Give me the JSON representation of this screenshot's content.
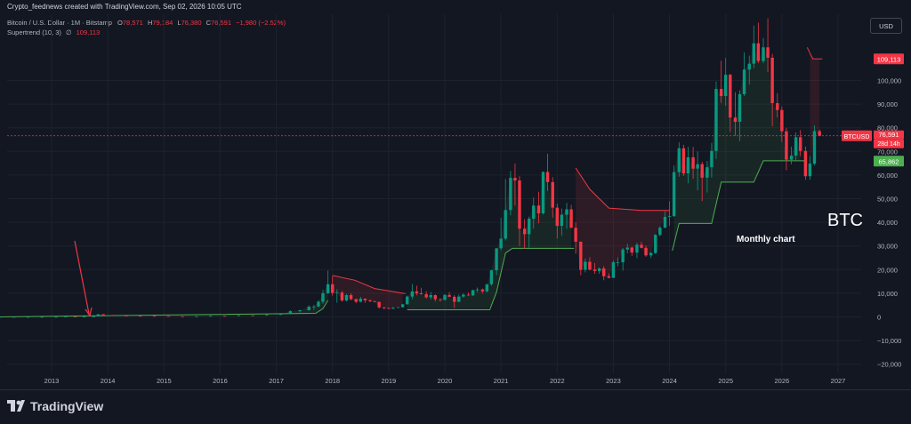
{
  "header": {
    "created_by": "Crypto_feednews created with TradingView.com, Sep 02, 2026 10:05 UTC"
  },
  "legend": {
    "symbol": "Bitcoin / U.S. Dollar · 1M · Bitstamp",
    "o_label": "O",
    "o_value": "78,571",
    "h_label": "H",
    "h_value": "79,184",
    "l_label": "L",
    "l_value": "76,380",
    "c_label": "C",
    "c_value": "76,591",
    "change": "−1,980 (−2.52%)",
    "indicator_name": "Supertrend (10, 3)",
    "indicator_sep": "∅",
    "indicator_value": "109,113"
  },
  "currency_button": "USD",
  "annotations": {
    "big_label": "BTC",
    "sub_label": "Monthly chart"
  },
  "footer": {
    "brand": "TradingView"
  },
  "colors": {
    "background": "#131722",
    "bull": "#089981",
    "bear": "#f23645",
    "supertrend_up": "#4caf50",
    "supertrend_down": "#f23645"
  },
  "price_tags": {
    "supertrend_tag": "109,113",
    "symbol_tag": "BTCUSD",
    "last_price_tag": "76,591",
    "countdown_tag": "28d 14h",
    "low_tag": "65,862"
  },
  "chart_data": {
    "type": "candlestick",
    "title": "",
    "y_axis_ticks": [
      -20000,
      -10000,
      0,
      10000,
      20000,
      30000,
      40000,
      50000,
      60000,
      70000,
      80000,
      90000,
      100000
    ],
    "y_tick_labels": [
      "−20,000",
      "−10,000",
      "0",
      "10,000",
      "20,000",
      "30,000",
      "40,000",
      "50,000",
      "60,000",
      "70,000",
      "80,000",
      "90,000",
      "100,000"
    ],
    "x_axis_labels": [
      "2013",
      "2014",
      "2015",
      "2016",
      "2017",
      "2018",
      "2019",
      "2020",
      "2021",
      "2022",
      "2023",
      "2024",
      "2025",
      "2026",
      "2027"
    ],
    "ylim": [
      -24000,
      118000
    ],
    "xlim": [
      2012.2,
      2027.4
    ],
    "candles": [
      {
        "t": 2012.08,
        "o": 5,
        "h": 7,
        "l": 4,
        "c": 6
      },
      {
        "t": 2012.33,
        "o": 6,
        "h": 7,
        "l": 5,
        "c": 6
      },
      {
        "t": 2012.58,
        "o": 6,
        "h": 14,
        "l": 6,
        "c": 11
      },
      {
        "t": 2012.83,
        "o": 11,
        "h": 14,
        "l": 10,
        "c": 13
      },
      {
        "t": 2013.08,
        "o": 13,
        "h": 35,
        "l": 13,
        "c": 33
      },
      {
        "t": 2013.25,
        "o": 33,
        "h": 266,
        "l": 33,
        "c": 140
      },
      {
        "t": 2013.42,
        "o": 140,
        "h": 140,
        "l": 65,
        "c": 96
      },
      {
        "t": 2013.58,
        "o": 96,
        "h": 130,
        "l": 70,
        "c": 125
      },
      {
        "t": 2013.75,
        "o": 125,
        "h": 300,
        "l": 110,
        "c": 200
      },
      {
        "t": 2013.83,
        "o": 200,
        "h": 1163,
        "l": 190,
        "c": 1100
      },
      {
        "t": 2013.92,
        "o": 1100,
        "h": 1160,
        "l": 400,
        "c": 730
      },
      {
        "t": 2014.08,
        "o": 730,
        "h": 950,
        "l": 450,
        "c": 560
      },
      {
        "t": 2014.33,
        "o": 560,
        "h": 680,
        "l": 340,
        "c": 450
      },
      {
        "t": 2014.58,
        "o": 450,
        "h": 650,
        "l": 350,
        "c": 400
      },
      {
        "t": 2014.83,
        "o": 400,
        "h": 420,
        "l": 280,
        "c": 320
      },
      {
        "t": 2015.08,
        "o": 320,
        "h": 320,
        "l": 170,
        "c": 250
      },
      {
        "t": 2015.33,
        "o": 250,
        "h": 260,
        "l": 200,
        "c": 230
      },
      {
        "t": 2015.58,
        "o": 230,
        "h": 300,
        "l": 200,
        "c": 240
      },
      {
        "t": 2015.83,
        "o": 240,
        "h": 500,
        "l": 230,
        "c": 430
      },
      {
        "t": 2016.08,
        "o": 430,
        "h": 460,
        "l": 360,
        "c": 420
      },
      {
        "t": 2016.33,
        "o": 420,
        "h": 780,
        "l": 410,
        "c": 670
      },
      {
        "t": 2016.58,
        "o": 670,
        "h": 680,
        "l": 520,
        "c": 610
      },
      {
        "t": 2016.83,
        "o": 610,
        "h": 980,
        "l": 600,
        "c": 960
      },
      {
        "t": 2017.08,
        "o": 960,
        "h": 1300,
        "l": 760,
        "c": 1200
      },
      {
        "t": 2017.25,
        "o": 1200,
        "h": 2800,
        "l": 1100,
        "c": 2400
      },
      {
        "t": 2017.42,
        "o": 2400,
        "h": 3000,
        "l": 1900,
        "c": 2800
      },
      {
        "t": 2017.58,
        "o": 2800,
        "h": 4900,
        "l": 2700,
        "c": 4300
      },
      {
        "t": 2017.67,
        "o": 4300,
        "h": 5000,
        "l": 3000,
        "c": 4400
      },
      {
        "t": 2017.75,
        "o": 4400,
        "h": 7000,
        "l": 4100,
        "c": 6400
      },
      {
        "t": 2017.83,
        "o": 6400,
        "h": 11400,
        "l": 5500,
        "c": 10000
      },
      {
        "t": 2017.92,
        "o": 10000,
        "h": 19600,
        "l": 9700,
        "c": 13800
      },
      {
        "t": 2018.0,
        "o": 13800,
        "h": 17200,
        "l": 9000,
        "c": 10100
      },
      {
        "t": 2018.08,
        "o": 10100,
        "h": 11700,
        "l": 6000,
        "c": 10300
      },
      {
        "t": 2018.17,
        "o": 10300,
        "h": 11000,
        "l": 6500,
        "c": 6900
      },
      {
        "t": 2018.25,
        "o": 6900,
        "h": 9700,
        "l": 6500,
        "c": 9200
      },
      {
        "t": 2018.33,
        "o": 9200,
        "h": 10000,
        "l": 7000,
        "c": 7500
      },
      {
        "t": 2018.42,
        "o": 7500,
        "h": 7800,
        "l": 5800,
        "c": 6400
      },
      {
        "t": 2018.5,
        "o": 6400,
        "h": 8500,
        "l": 6100,
        "c": 7700
      },
      {
        "t": 2018.58,
        "o": 7700,
        "h": 7800,
        "l": 5900,
        "c": 7000
      },
      {
        "t": 2018.67,
        "o": 7000,
        "h": 7400,
        "l": 6200,
        "c": 6600
      },
      {
        "t": 2018.75,
        "o": 6600,
        "h": 6800,
        "l": 6200,
        "c": 6300
      },
      {
        "t": 2018.83,
        "o": 6300,
        "h": 6500,
        "l": 3500,
        "c": 4000
      },
      {
        "t": 2018.92,
        "o": 4000,
        "h": 4200,
        "l": 3200,
        "c": 3700
      },
      {
        "t": 2019.0,
        "o": 3700,
        "h": 4000,
        "l": 3400,
        "c": 3400
      },
      {
        "t": 2019.08,
        "o": 3400,
        "h": 4200,
        "l": 3400,
        "c": 3800
      },
      {
        "t": 2019.17,
        "o": 3800,
        "h": 4100,
        "l": 3700,
        "c": 4100
      },
      {
        "t": 2019.25,
        "o": 4100,
        "h": 5500,
        "l": 4000,
        "c": 5300
      },
      {
        "t": 2019.33,
        "o": 5300,
        "h": 9000,
        "l": 5300,
        "c": 8600
      },
      {
        "t": 2019.42,
        "o": 8600,
        "h": 13900,
        "l": 7500,
        "c": 10800
      },
      {
        "t": 2019.5,
        "o": 10800,
        "h": 13200,
        "l": 9100,
        "c": 10000
      },
      {
        "t": 2019.58,
        "o": 10000,
        "h": 12300,
        "l": 9400,
        "c": 9600
      },
      {
        "t": 2019.67,
        "o": 9600,
        "h": 10900,
        "l": 7700,
        "c": 8300
      },
      {
        "t": 2019.75,
        "o": 8300,
        "h": 10500,
        "l": 7300,
        "c": 9200
      },
      {
        "t": 2019.83,
        "o": 9200,
        "h": 9500,
        "l": 6500,
        "c": 7500
      },
      {
        "t": 2019.92,
        "o": 7500,
        "h": 7800,
        "l": 6400,
        "c": 7200
      },
      {
        "t": 2020.0,
        "o": 7200,
        "h": 9600,
        "l": 6900,
        "c": 9300
      },
      {
        "t": 2020.08,
        "o": 9300,
        "h": 10500,
        "l": 8400,
        "c": 8500
      },
      {
        "t": 2020.17,
        "o": 8500,
        "h": 9200,
        "l": 3800,
        "c": 6400
      },
      {
        "t": 2020.25,
        "o": 6400,
        "h": 9500,
        "l": 6200,
        "c": 8600
      },
      {
        "t": 2020.33,
        "o": 8600,
        "h": 10000,
        "l": 8100,
        "c": 9400
      },
      {
        "t": 2020.42,
        "o": 9400,
        "h": 10400,
        "l": 8900,
        "c": 9100
      },
      {
        "t": 2020.5,
        "o": 9100,
        "h": 11400,
        "l": 8900,
        "c": 11300
      },
      {
        "t": 2020.58,
        "o": 11300,
        "h": 12400,
        "l": 10500,
        "c": 11600
      },
      {
        "t": 2020.67,
        "o": 11600,
        "h": 12000,
        "l": 9900,
        "c": 10800
      },
      {
        "t": 2020.75,
        "o": 10800,
        "h": 13800,
        "l": 10400,
        "c": 13800
      },
      {
        "t": 2020.83,
        "o": 13800,
        "h": 19900,
        "l": 13200,
        "c": 19700
      },
      {
        "t": 2020.92,
        "o": 19700,
        "h": 29000,
        "l": 17600,
        "c": 29000
      },
      {
        "t": 2021.0,
        "o": 29000,
        "h": 41900,
        "l": 28100,
        "c": 33100
      },
      {
        "t": 2021.08,
        "o": 33100,
        "h": 58300,
        "l": 32300,
        "c": 45200
      },
      {
        "t": 2021.17,
        "o": 45200,
        "h": 61700,
        "l": 43000,
        "c": 58800
      },
      {
        "t": 2021.25,
        "o": 58800,
        "h": 64800,
        "l": 47100,
        "c": 57700
      },
      {
        "t": 2021.33,
        "o": 57700,
        "h": 59500,
        "l": 30000,
        "c": 37300
      },
      {
        "t": 2021.42,
        "o": 37300,
        "h": 41300,
        "l": 28800,
        "c": 35000
      },
      {
        "t": 2021.5,
        "o": 35000,
        "h": 42400,
        "l": 29300,
        "c": 41500
      },
      {
        "t": 2021.58,
        "o": 41500,
        "h": 50500,
        "l": 37300,
        "c": 47100
      },
      {
        "t": 2021.67,
        "o": 47100,
        "h": 52900,
        "l": 39600,
        "c": 43800
      },
      {
        "t": 2021.75,
        "o": 43800,
        "h": 61500,
        "l": 43300,
        "c": 61300
      },
      {
        "t": 2021.83,
        "o": 61300,
        "h": 69000,
        "l": 53300,
        "c": 57000
      },
      {
        "t": 2021.92,
        "o": 57000,
        "h": 59100,
        "l": 42000,
        "c": 46200
      },
      {
        "t": 2022.0,
        "o": 46200,
        "h": 47900,
        "l": 33100,
        "c": 38500
      },
      {
        "t": 2022.08,
        "o": 38500,
        "h": 45800,
        "l": 34300,
        "c": 43200
      },
      {
        "t": 2022.17,
        "o": 43200,
        "h": 48200,
        "l": 37200,
        "c": 45500
      },
      {
        "t": 2022.25,
        "o": 45500,
        "h": 47400,
        "l": 37600,
        "c": 37700
      },
      {
        "t": 2022.33,
        "o": 37700,
        "h": 40000,
        "l": 26700,
        "c": 31800
      },
      {
        "t": 2022.42,
        "o": 31800,
        "h": 31900,
        "l": 17600,
        "c": 19900
      },
      {
        "t": 2022.5,
        "o": 19900,
        "h": 24700,
        "l": 18800,
        "c": 23300
      },
      {
        "t": 2022.58,
        "o": 23300,
        "h": 25200,
        "l": 19600,
        "c": 20000
      },
      {
        "t": 2022.67,
        "o": 20000,
        "h": 22800,
        "l": 18200,
        "c": 19400
      },
      {
        "t": 2022.75,
        "o": 19400,
        "h": 20900,
        "l": 18200,
        "c": 20500
      },
      {
        "t": 2022.83,
        "o": 20500,
        "h": 21500,
        "l": 15500,
        "c": 17200
      },
      {
        "t": 2022.92,
        "o": 17200,
        "h": 18400,
        "l": 16300,
        "c": 16500
      },
      {
        "t": 2023.0,
        "o": 16500,
        "h": 23900,
        "l": 16500,
        "c": 23100
      },
      {
        "t": 2023.08,
        "o": 23100,
        "h": 25200,
        "l": 21400,
        "c": 23100
      },
      {
        "t": 2023.17,
        "o": 23100,
        "h": 29200,
        "l": 19600,
        "c": 28500
      },
      {
        "t": 2023.25,
        "o": 28500,
        "h": 31000,
        "l": 26900,
        "c": 29300
      },
      {
        "t": 2023.33,
        "o": 29300,
        "h": 29800,
        "l": 25800,
        "c": 27200
      },
      {
        "t": 2023.42,
        "o": 27200,
        "h": 31400,
        "l": 24800,
        "c": 30500
      },
      {
        "t": 2023.5,
        "o": 30500,
        "h": 31800,
        "l": 29000,
        "c": 29200
      },
      {
        "t": 2023.58,
        "o": 29200,
        "h": 30200,
        "l": 25400,
        "c": 26000
      },
      {
        "t": 2023.67,
        "o": 26000,
        "h": 27500,
        "l": 24900,
        "c": 27000
      },
      {
        "t": 2023.75,
        "o": 27000,
        "h": 35000,
        "l": 26600,
        "c": 34700
      },
      {
        "t": 2023.83,
        "o": 34700,
        "h": 38400,
        "l": 34100,
        "c": 37700
      },
      {
        "t": 2023.92,
        "o": 37700,
        "h": 44700,
        "l": 37600,
        "c": 42300
      },
      {
        "t": 2024.0,
        "o": 42300,
        "h": 48900,
        "l": 38500,
        "c": 42600
      },
      {
        "t": 2024.08,
        "o": 42600,
        "h": 64000,
        "l": 42300,
        "c": 61200
      },
      {
        "t": 2024.17,
        "o": 61200,
        "h": 73800,
        "l": 59300,
        "c": 71300
      },
      {
        "t": 2024.25,
        "o": 71300,
        "h": 72800,
        "l": 59600,
        "c": 60700
      },
      {
        "t": 2024.33,
        "o": 60700,
        "h": 71900,
        "l": 56500,
        "c": 67500
      },
      {
        "t": 2024.42,
        "o": 67500,
        "h": 71900,
        "l": 58400,
        "c": 62700
      },
      {
        "t": 2024.5,
        "o": 62700,
        "h": 70000,
        "l": 53500,
        "c": 64600
      },
      {
        "t": 2024.58,
        "o": 64600,
        "h": 65600,
        "l": 49000,
        "c": 58900
      },
      {
        "t": 2024.67,
        "o": 58900,
        "h": 66000,
        "l": 52600,
        "c": 63300
      },
      {
        "t": 2024.75,
        "o": 63300,
        "h": 73600,
        "l": 58900,
        "c": 70200
      },
      {
        "t": 2024.83,
        "o": 70200,
        "h": 99600,
        "l": 66800,
        "c": 96400
      },
      {
        "t": 2024.92,
        "o": 96400,
        "h": 108300,
        "l": 90500,
        "c": 93400
      },
      {
        "t": 2025.0,
        "o": 93400,
        "h": 109600,
        "l": 89200,
        "c": 102400
      },
      {
        "t": 2025.08,
        "o": 102400,
        "h": 102800,
        "l": 78200,
        "c": 84300
      },
      {
        "t": 2025.17,
        "o": 84300,
        "h": 95000,
        "l": 76600,
        "c": 82500
      },
      {
        "t": 2025.25,
        "o": 82500,
        "h": 95800,
        "l": 74400,
        "c": 94200
      },
      {
        "t": 2025.33,
        "o": 94200,
        "h": 111900,
        "l": 93400,
        "c": 104600
      },
      {
        "t": 2025.42,
        "o": 104600,
        "h": 110500,
        "l": 98200,
        "c": 107100
      },
      {
        "t": 2025.5,
        "o": 107100,
        "h": 123200,
        "l": 105100,
        "c": 115700
      },
      {
        "t": 2025.58,
        "o": 115700,
        "h": 124500,
        "l": 107300,
        "c": 108200
      },
      {
        "t": 2025.67,
        "o": 108200,
        "h": 117900,
        "l": 107300,
        "c": 114000
      },
      {
        "t": 2025.75,
        "o": 114000,
        "h": 126200,
        "l": 103500,
        "c": 109600
      },
      {
        "t": 2025.83,
        "o": 109600,
        "h": 111200,
        "l": 80600,
        "c": 90400
      },
      {
        "t": 2025.92,
        "o": 90400,
        "h": 94600,
        "l": 84400,
        "c": 87500
      },
      {
        "t": 2026.0,
        "o": 87500,
        "h": 89000,
        "l": 74000,
        "c": 78500
      },
      {
        "t": 2026.08,
        "o": 78500,
        "h": 80000,
        "l": 62000,
        "c": 66500
      },
      {
        "t": 2026.17,
        "o": 66500,
        "h": 72000,
        "l": 64500,
        "c": 68200
      },
      {
        "t": 2026.25,
        "o": 68200,
        "h": 78000,
        "l": 66000,
        "c": 76000
      },
      {
        "t": 2026.33,
        "o": 76000,
        "h": 79000,
        "l": 68000,
        "c": 70200
      },
      {
        "t": 2026.42,
        "o": 70200,
        "h": 72000,
        "l": 58000,
        "c": 59500
      },
      {
        "t": 2026.5,
        "o": 59500,
        "h": 68000,
        "l": 58000,
        "c": 64800
      },
      {
        "t": 2026.58,
        "o": 64800,
        "h": 81000,
        "l": 64000,
        "c": 78571
      },
      {
        "t": 2026.67,
        "o": 78571,
        "h": 79184,
        "l": 76380,
        "c": 76591
      }
    ],
    "supertrend": [
      {
        "t": 2012.05,
        "v": 0,
        "dir": "up"
      },
      {
        "t": 2017.7,
        "v": 1500,
        "dir": "up"
      },
      {
        "t": 2017.83,
        "v": 3500,
        "dir": "up"
      },
      {
        "t": 2017.92,
        "v": 7000,
        "dir": "up"
      },
      {
        "t": 2018.0,
        "v": 17500,
        "dir": "down"
      },
      {
        "t": 2018.4,
        "v": 15500,
        "dir": "down"
      },
      {
        "t": 2018.75,
        "v": 12000,
        "dir": "down"
      },
      {
        "t": 2019.3,
        "v": 9800,
        "dir": "down"
      },
      {
        "t": 2019.33,
        "v": 3000,
        "dir": "up"
      },
      {
        "t": 2020.8,
        "v": 3000,
        "dir": "up"
      },
      {
        "t": 2020.92,
        "v": 10500,
        "dir": "up"
      },
      {
        "t": 2021.08,
        "v": 27000,
        "dir": "up"
      },
      {
        "t": 2021.2,
        "v": 29000,
        "dir": "up"
      },
      {
        "t": 2022.3,
        "v": 29000,
        "dir": "up"
      },
      {
        "t": 2022.33,
        "v": 63000,
        "dir": "down"
      },
      {
        "t": 2022.58,
        "v": 54000,
        "dir": "down"
      },
      {
        "t": 2022.92,
        "v": 46000,
        "dir": "down"
      },
      {
        "t": 2023.5,
        "v": 45000,
        "dir": "down"
      },
      {
        "t": 2024.0,
        "v": 45000,
        "dir": "down"
      },
      {
        "t": 2024.05,
        "v": 28000,
        "dir": "up"
      },
      {
        "t": 2024.17,
        "v": 39500,
        "dir": "up"
      },
      {
        "t": 2024.75,
        "v": 39500,
        "dir": "up"
      },
      {
        "t": 2024.92,
        "v": 57000,
        "dir": "up"
      },
      {
        "t": 2025.5,
        "v": 57000,
        "dir": "up"
      },
      {
        "t": 2025.67,
        "v": 66000,
        "dir": "up"
      },
      {
        "t": 2026.4,
        "v": 66000,
        "dir": "up"
      },
      {
        "t": 2026.45,
        "v": 114000,
        "dir": "down"
      },
      {
        "t": 2026.55,
        "v": 109113,
        "dir": "down"
      },
      {
        "t": 2026.72,
        "v": 109113,
        "dir": "down"
      }
    ],
    "last_price": 76591,
    "supertrend_value": 109113,
    "grid": true
  }
}
